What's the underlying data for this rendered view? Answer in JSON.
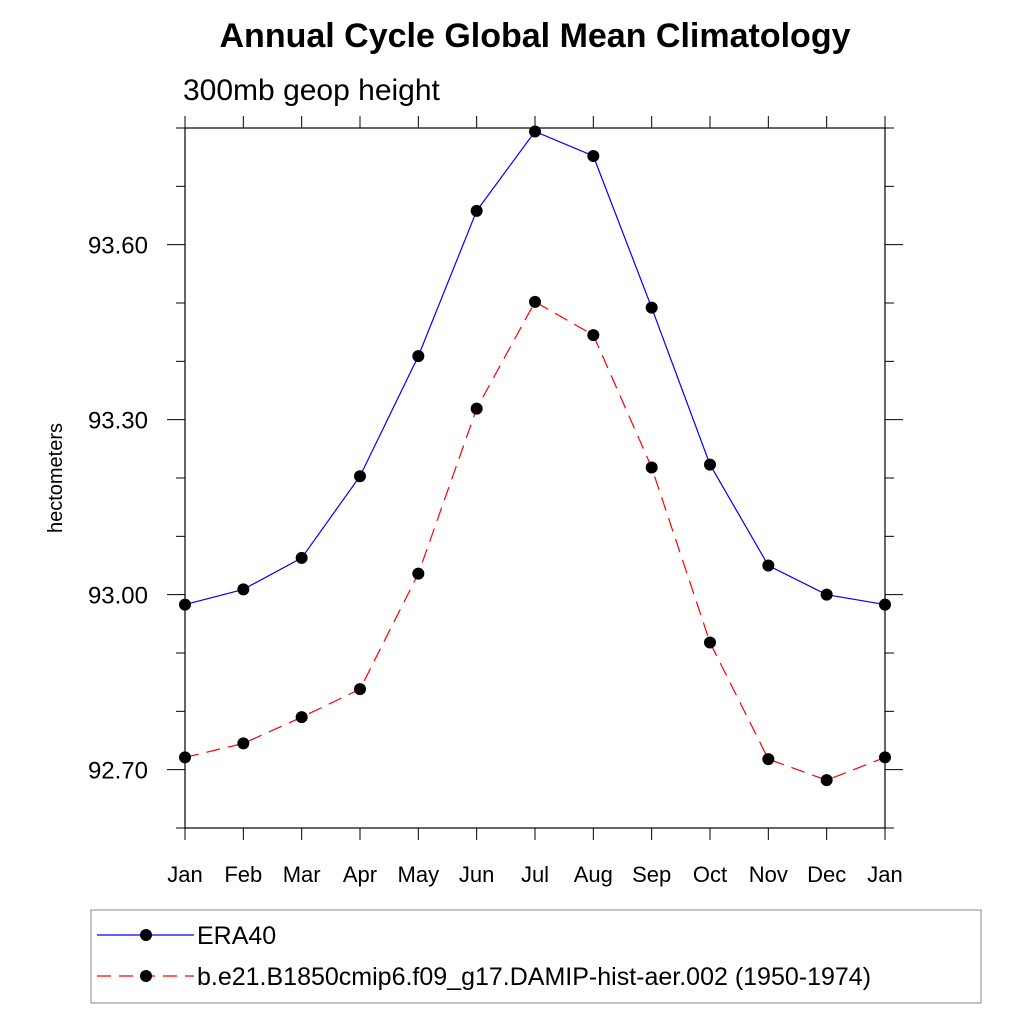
{
  "chart_data": {
    "type": "line",
    "title": "Annual Cycle Global Mean Climatology",
    "subtitle": "300mb geop height",
    "xlabel": "",
    "ylabel": "hectometers",
    "categories": [
      "Jan",
      "Feb",
      "Mar",
      "Apr",
      "May",
      "Jun",
      "Jul",
      "Aug",
      "Sep",
      "Oct",
      "Nov",
      "Dec",
      "Jan"
    ],
    "ylim": [
      92.6,
      93.8
    ],
    "yticks": [
      92.7,
      93.0,
      93.3,
      93.6
    ],
    "ytick_labels": [
      "92.70",
      "93.00",
      "93.30",
      "93.60"
    ],
    "grid": false,
    "legend_position": "bottom",
    "series": [
      {
        "name": "ERA40",
        "color": "#0000ff",
        "dash": "solid",
        "marker": "filled-circle",
        "values": [
          92.983,
          93.009,
          93.063,
          93.203,
          93.409,
          93.658,
          93.794,
          93.752,
          93.492,
          93.223,
          93.05,
          93.0,
          92.983
        ]
      },
      {
        "name": "b.e21.B1850cmip6.f09_g17.DAMIP-hist-aer.002 (1950-1974)",
        "color": "#ff0000",
        "dash": "dashed",
        "marker": "filled-circle",
        "values": [
          92.721,
          92.745,
          92.79,
          92.838,
          93.036,
          93.319,
          93.502,
          93.445,
          93.218,
          92.918,
          92.718,
          92.682,
          92.721
        ]
      }
    ]
  }
}
